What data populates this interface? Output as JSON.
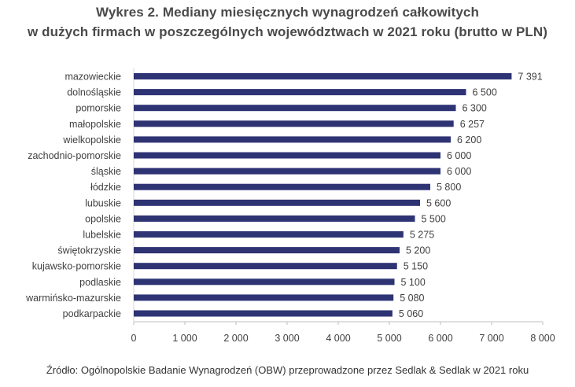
{
  "title_line1": "Wykres 2. Mediany miesięcznych wynagrodzeń całkowitych",
  "title_line2": "w dużych firmach w poszczególnych województwach w 2021 roku (brutto w PLN)",
  "source": "Źródło: Ogólnopolskie Badanie Wynagrodzeń (OBW) przeprowadzone przez Sedlak & Sedlak w 2021 roku",
  "chart_data": {
    "type": "bar",
    "orientation": "horizontal",
    "title": "Wykres 2. Mediany miesięcznych wynagrodzeń całkowitych w dużych firmach w poszczególnych województwach w 2021 roku (brutto w PLN)",
    "categories": [
      "mazowieckie",
      "dolnośląskie",
      "pomorskie",
      "małopolskie",
      "wielkopolskie",
      "zachodnio-pomorskie",
      "śląskie",
      "łódzkie",
      "lubuskie",
      "opolskie",
      "lubelskie",
      "świętokrzyskie",
      "kujawsko-pomorskie",
      "podlaskie",
      "warmińsko-mazurskie",
      "podkarpackie"
    ],
    "values": [
      7391,
      6500,
      6300,
      6257,
      6200,
      6000,
      6000,
      5800,
      5600,
      5500,
      5275,
      5200,
      5150,
      5100,
      5080,
      5060
    ],
    "value_labels": [
      "7 391",
      "6 500",
      "6 300",
      "6 257",
      "6 200",
      "6 000",
      "6 000",
      "5 800",
      "5 600",
      "5 500",
      "5 275",
      "5 200",
      "5 150",
      "5 100",
      "5 080",
      "5 060"
    ],
    "xlim": [
      0,
      8000
    ],
    "xticks": [
      0,
      1000,
      2000,
      3000,
      4000,
      5000,
      6000,
      7000,
      8000
    ],
    "xtick_labels": [
      "0",
      "1 000",
      "2 000",
      "3 000",
      "4 000",
      "5 000",
      "6 000",
      "7 000",
      "8 000"
    ],
    "bar_color": "#2e3374",
    "grid": false,
    "legend": "none"
  }
}
